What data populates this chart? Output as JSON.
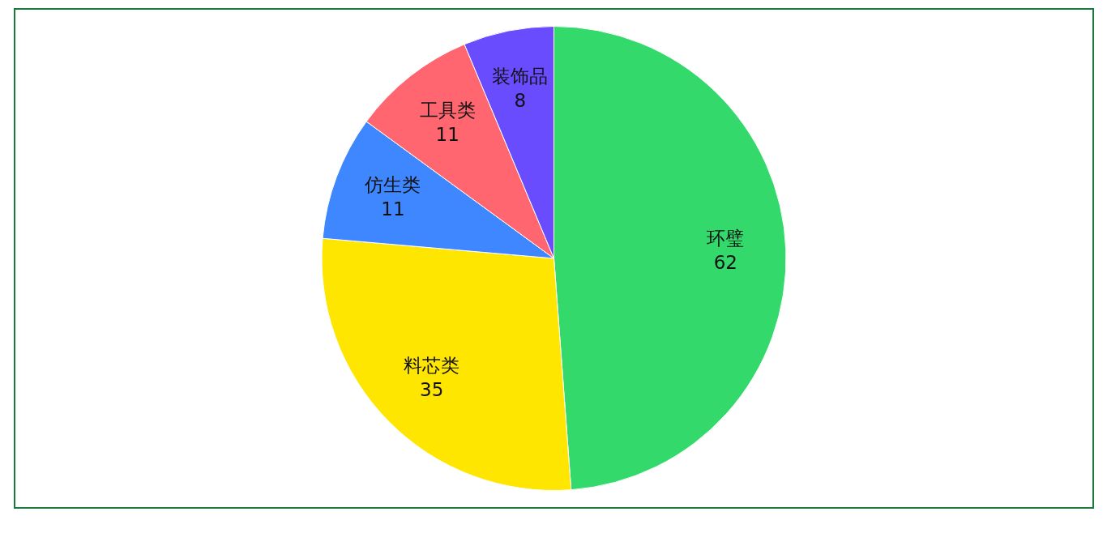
{
  "chart_data": {
    "type": "pie",
    "categories": [
      "环璧",
      "料芯类",
      "仿生类",
      "工具类",
      "装饰品"
    ],
    "values": [
      62,
      35,
      11,
      11,
      8
    ],
    "colors": [
      "#33d96b",
      "#ffe600",
      "#3f87ff",
      "#ff6670",
      "#6a4cff"
    ],
    "data_labels": true
  }
}
